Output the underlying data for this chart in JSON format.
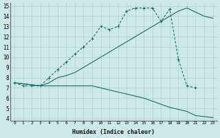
{
  "xlabel": "Humidex (Indice chaleur)",
  "bg_color": "#cde8e8",
  "line_color": "#1a6b6b",
  "grid_color": "#b0d0d0",
  "xlim": [
    -0.5,
    23.5
  ],
  "ylim": [
    3.8,
    15.3
  ],
  "xticks": [
    0,
    1,
    2,
    3,
    4,
    5,
    6,
    7,
    8,
    9,
    10,
    11,
    12,
    13,
    14,
    15,
    16,
    17,
    18,
    19,
    20,
    21,
    22,
    23
  ],
  "yticks": [
    4,
    5,
    6,
    7,
    8,
    9,
    10,
    11,
    12,
    13,
    14,
    15
  ],
  "line1_x": [
    0,
    1,
    2,
    3,
    4,
    5,
    6,
    7,
    8,
    9,
    10,
    11,
    12,
    13,
    14,
    15,
    16,
    17,
    18,
    19,
    20,
    21
  ],
  "line1_y": [
    7.5,
    7.2,
    7.2,
    7.2,
    8.0,
    8.8,
    9.5,
    10.3,
    11.0,
    11.8,
    13.0,
    12.7,
    13.0,
    14.5,
    14.8,
    14.8,
    14.8,
    13.5,
    14.7,
    9.8,
    7.2,
    7.0
  ],
  "line2_x": [
    0,
    3,
    4,
    5,
    6,
    7,
    8,
    9,
    10,
    11,
    12,
    13,
    14,
    15,
    16,
    17,
    18,
    19,
    20,
    22,
    23
  ],
  "line2_y": [
    7.5,
    7.2,
    7.5,
    8.0,
    8.2,
    8.5,
    9.0,
    9.5,
    10.0,
    10.5,
    11.0,
    11.5,
    12.0,
    12.5,
    13.0,
    13.5,
    14.0,
    14.5,
    14.8,
    14.0,
    13.8
  ],
  "line3_x": [
    0,
    3,
    9,
    10,
    11,
    12,
    13,
    14,
    15,
    16,
    17,
    18,
    19,
    20,
    21,
    22,
    23
  ],
  "line3_y": [
    7.5,
    7.2,
    7.2,
    7.0,
    6.8,
    6.6,
    6.4,
    6.2,
    6.0,
    5.7,
    5.4,
    5.1,
    4.9,
    4.7,
    4.3,
    4.2,
    4.1
  ]
}
